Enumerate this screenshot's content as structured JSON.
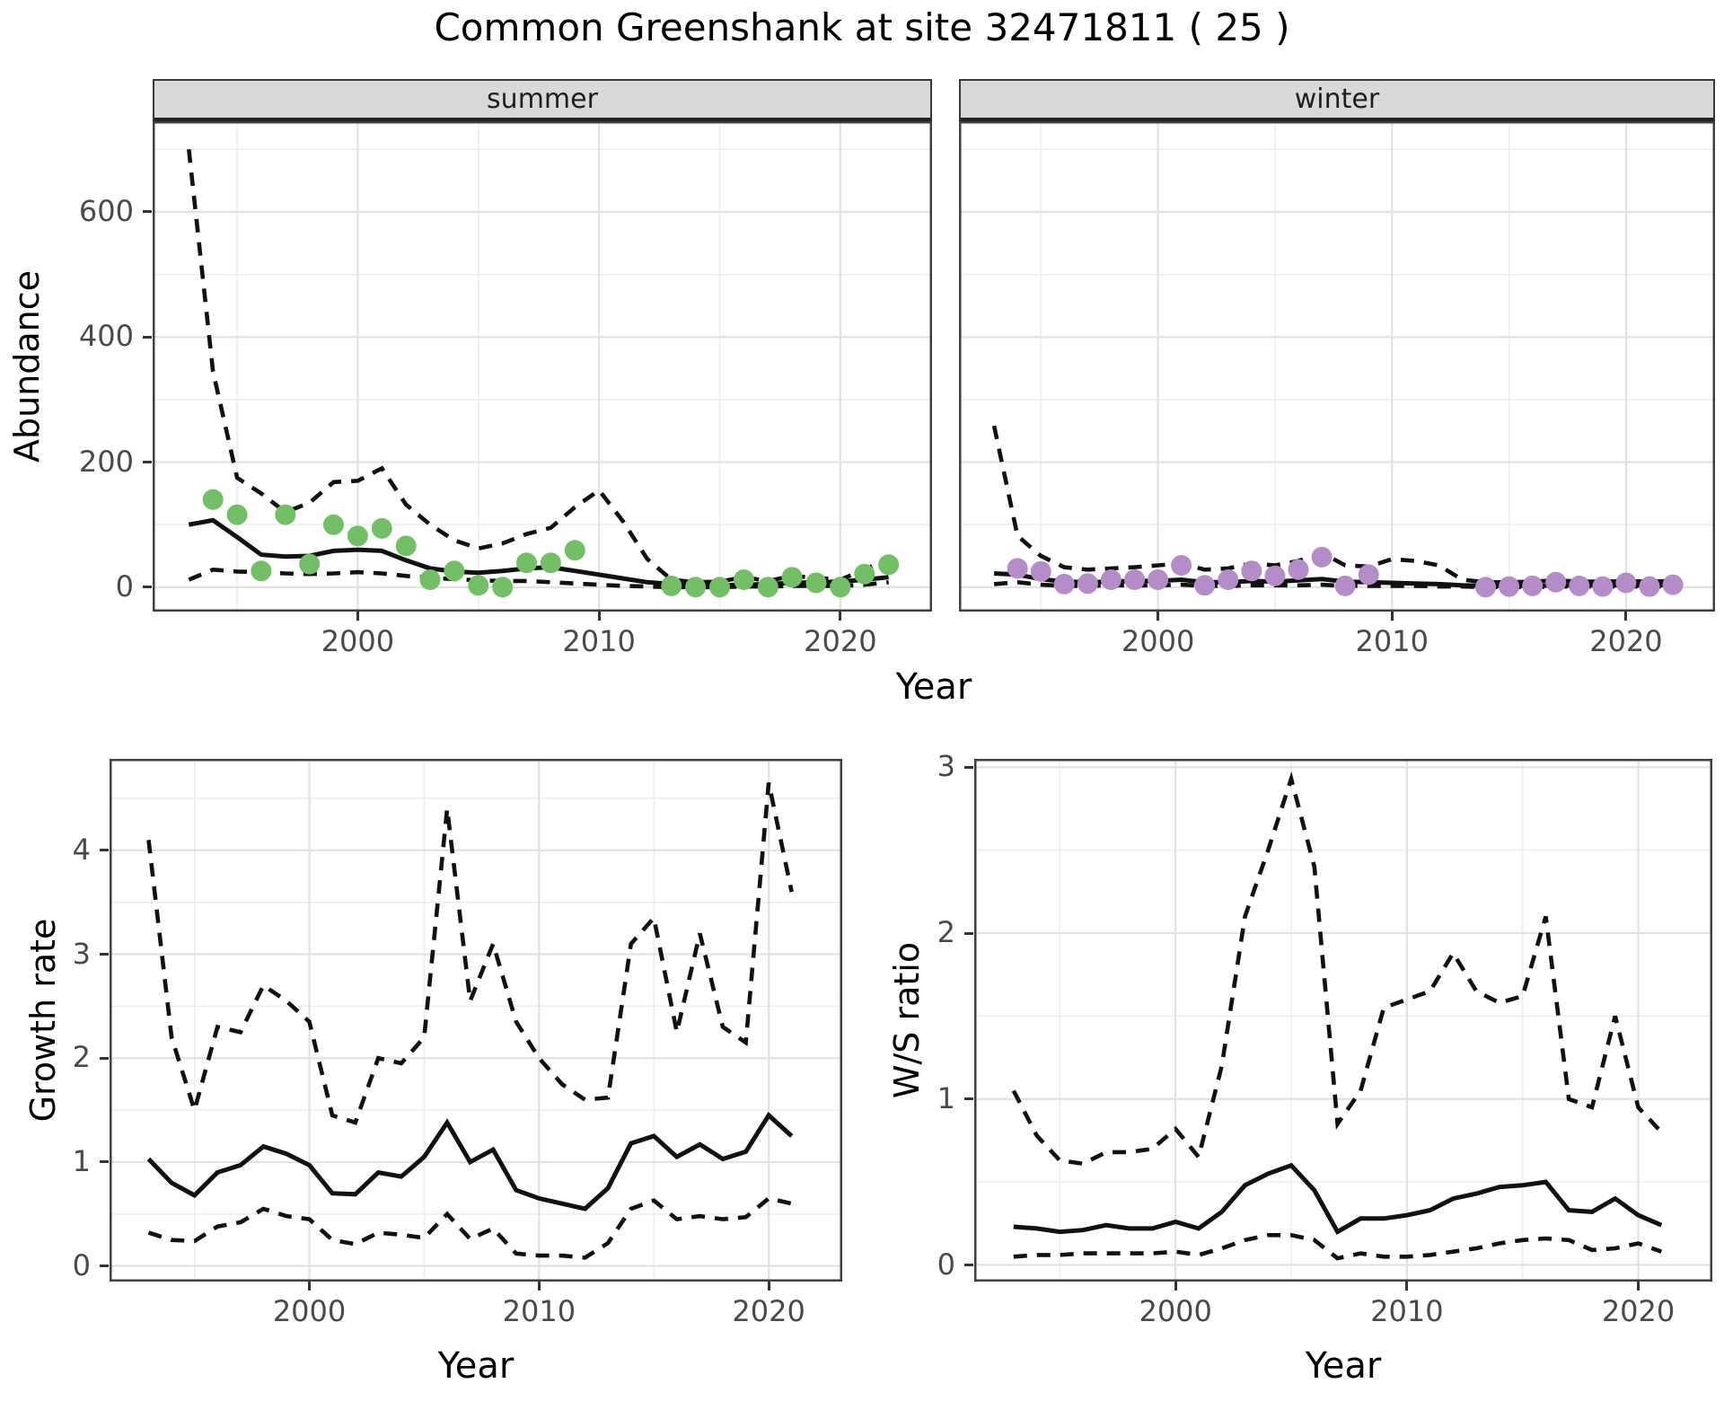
{
  "title": "Common Greenshank at site 32471811 ( 25 )",
  "labels": {
    "year": "Year",
    "abundance": "Abundance",
    "growth_rate": "Growth rate",
    "ws_ratio": "W/S ratio"
  },
  "facet_strips": [
    "summer",
    "winter"
  ],
  "colors": {
    "summer_point": "#72bf66",
    "winter_point": "#b48cc8",
    "line": "#111111",
    "grid_major": "#e2e2e2",
    "grid_minor": "#eeeeee",
    "panel_border": "#404040",
    "strip_bg": "#d9d9d9",
    "tick_text": "#4a4a4a"
  },
  "chart_data": [
    {
      "type": "line",
      "name": "abundance-summer",
      "facet": "summer",
      "title": "summer",
      "xlabel": "Year",
      "ylabel": "Abundance",
      "xlim": [
        1991.5,
        2023.8
      ],
      "ylim": [
        -39,
        745
      ],
      "grid": true,
      "legend": "none",
      "xticks": {
        "major": [
          2000,
          2010,
          2020
        ],
        "minor": [
          1995,
          2005,
          2015
        ],
        "labels": [
          "2000",
          "2010",
          "2020"
        ]
      },
      "yticks": {
        "major": [
          0,
          200,
          400,
          600
        ],
        "minor": [
          100,
          300,
          500,
          700
        ],
        "labels": [
          "0",
          "200",
          "400",
          "600"
        ]
      },
      "show_ytick_labels": true,
      "x": [
        1993,
        1994,
        1995,
        1996,
        1997,
        1998,
        1999,
        2000,
        2001,
        2002,
        2003,
        2004,
        2005,
        2006,
        2007,
        2008,
        2009,
        2010,
        2011,
        2012,
        2013,
        2014,
        2015,
        2016,
        2017,
        2018,
        2019,
        2020,
        2021,
        2022
      ],
      "series": [
        {
          "name": "median",
          "dash": false,
          "values": [
            100,
            107,
            80,
            52,
            49,
            50,
            58,
            60,
            58,
            43,
            30,
            25,
            23,
            26,
            30,
            32,
            26,
            20,
            14,
            8,
            5,
            3,
            3,
            4,
            5,
            7,
            8,
            9,
            12,
            16
          ]
        },
        {
          "name": "upper_ci",
          "dash": true,
          "values": [
            700,
            345,
            175,
            150,
            120,
            135,
            168,
            170,
            190,
            132,
            100,
            75,
            62,
            70,
            85,
            95,
            128,
            155,
            105,
            45,
            12,
            8,
            9,
            16,
            10,
            18,
            15,
            12,
            28,
            45
          ]
        },
        {
          "name": "lower_ci",
          "dash": true,
          "values": [
            12,
            28,
            25,
            24,
            22,
            21,
            22,
            24,
            22,
            18,
            15,
            13,
            11,
            10,
            10,
            8,
            6,
            4,
            2,
            1,
            0,
            0,
            0,
            1,
            1,
            2,
            2,
            2,
            4,
            8
          ]
        }
      ],
      "points": {
        "color_key": "summer_point",
        "x": [
          1994,
          1995,
          1996,
          1997,
          1998,
          1999,
          2000,
          2001,
          2002,
          2003,
          2004,
          2005,
          2006,
          2007,
          2008,
          2009,
          2013,
          2014,
          2015,
          2016,
          2017,
          2018,
          2019,
          2020,
          2021,
          2022
        ],
        "y": [
          140,
          116,
          26,
          116,
          37,
          100,
          82,
          94,
          66,
          12,
          26,
          3,
          0,
          39,
          39,
          59,
          2,
          0,
          0,
          12,
          0,
          16,
          7,
          0,
          21,
          36
        ]
      }
    },
    {
      "type": "line",
      "name": "abundance-winter",
      "facet": "winter",
      "title": "winter",
      "xlabel": "Year",
      "ylabel": "Abundance",
      "xlim": [
        1991.5,
        2023.8
      ],
      "ylim": [
        -39,
        745
      ],
      "grid": true,
      "legend": "none",
      "xticks": {
        "major": [
          2000,
          2010,
          2020
        ],
        "minor": [
          1995,
          2005,
          2015
        ],
        "labels": [
          "2000",
          "2010",
          "2020"
        ]
      },
      "yticks": {
        "major": [
          0,
          200,
          400,
          600
        ],
        "minor": [
          100,
          300,
          500,
          700
        ],
        "labels": [
          "0",
          "200",
          "400",
          "600"
        ]
      },
      "show_ytick_labels": false,
      "x": [
        1993,
        1994,
        1995,
        1996,
        1997,
        1998,
        1999,
        2000,
        2001,
        2002,
        2003,
        2004,
        2005,
        2006,
        2007,
        2008,
        2009,
        2010,
        2011,
        2012,
        2013,
        2014,
        2015,
        2016,
        2017,
        2018,
        2019,
        2020,
        2021,
        2022
      ],
      "series": [
        {
          "name": "median",
          "dash": false,
          "values": [
            22,
            20,
            13,
            9,
            8,
            9,
            10,
            10,
            12,
            8,
            8,
            10,
            9,
            11,
            13,
            9,
            8,
            7,
            6,
            5,
            3,
            2,
            2,
            2,
            3,
            3,
            3,
            3,
            3,
            4
          ]
        },
        {
          "name": "upper_ci",
          "dash": true,
          "values": [
            258,
            82,
            50,
            32,
            28,
            30,
            32,
            35,
            38,
            28,
            30,
            38,
            35,
            42,
            55,
            35,
            33,
            45,
            42,
            35,
            12,
            8,
            8,
            9,
            11,
            9,
            9,
            10,
            9,
            10
          ]
        },
        {
          "name": "lower_ci",
          "dash": true,
          "values": [
            5,
            8,
            4,
            2,
            2,
            3,
            3,
            3,
            4,
            2,
            2,
            3,
            3,
            3,
            4,
            2,
            2,
            2,
            2,
            1,
            1,
            0,
            0,
            0,
            1,
            1,
            1,
            1,
            1,
            1
          ]
        }
      ],
      "points": {
        "color_key": "winter_point",
        "x": [
          1994,
          1995,
          1996,
          1997,
          1998,
          1999,
          2000,
          2001,
          2002,
          2003,
          2004,
          2005,
          2006,
          2007,
          2008,
          2009,
          2014,
          2015,
          2016,
          2017,
          2018,
          2019,
          2020,
          2021,
          2022
        ],
        "y": [
          30,
          25,
          5,
          6,
          12,
          12,
          12,
          35,
          3,
          12,
          26,
          18,
          28,
          48,
          2,
          20,
          0,
          1,
          2,
          8,
          2,
          1,
          7,
          1,
          4
        ]
      }
    },
    {
      "type": "line",
      "name": "growth-rate",
      "facet": null,
      "title": "",
      "xlabel": "Year",
      "ylabel": "Growth rate",
      "xlim": [
        1991.3,
        2023.2
      ],
      "ylim": [
        -0.15,
        4.88
      ],
      "grid": true,
      "legend": "none",
      "xticks": {
        "major": [
          2000,
          2010,
          2020
        ],
        "minor": [
          1995,
          2005,
          2015
        ],
        "labels": [
          "2000",
          "2010",
          "2020"
        ]
      },
      "yticks": {
        "major": [
          0,
          1,
          2,
          3,
          4
        ],
        "minor": [
          0.5,
          1.5,
          2.5,
          3.5,
          4.5
        ],
        "labels": [
          "0",
          "1",
          "2",
          "3",
          "4"
        ]
      },
      "show_ytick_labels": true,
      "x": [
        1993,
        1994,
        1995,
        1996,
        1997,
        1998,
        1999,
        2000,
        2001,
        2002,
        2003,
        2004,
        2005,
        2006,
        2007,
        2008,
        2009,
        2010,
        2011,
        2012,
        2013,
        2014,
        2015,
        2016,
        2017,
        2018,
        2019,
        2020,
        2021
      ],
      "series": [
        {
          "name": "median",
          "dash": false,
          "values": [
            1.03,
            0.8,
            0.68,
            0.9,
            0.97,
            1.15,
            1.08,
            0.97,
            0.7,
            0.69,
            0.9,
            0.86,
            1.05,
            1.38,
            1.0,
            1.12,
            0.73,
            0.65,
            0.6,
            0.55,
            0.75,
            1.18,
            1.25,
            1.05,
            1.17,
            1.03,
            1.1,
            1.45,
            1.25
          ]
        },
        {
          "name": "upper_ci",
          "dash": true,
          "values": [
            4.1,
            2.2,
            1.5,
            2.3,
            2.25,
            2.7,
            2.55,
            2.35,
            1.45,
            1.38,
            2.0,
            1.95,
            2.2,
            4.4,
            2.55,
            3.1,
            2.35,
            2.0,
            1.75,
            1.6,
            1.62,
            3.1,
            3.35,
            2.25,
            3.2,
            2.3,
            2.15,
            4.65,
            3.6
          ]
        },
        {
          "name": "lower_ci",
          "dash": true,
          "values": [
            0.32,
            0.25,
            0.24,
            0.38,
            0.42,
            0.55,
            0.48,
            0.45,
            0.25,
            0.21,
            0.32,
            0.3,
            0.27,
            0.5,
            0.26,
            0.36,
            0.12,
            0.1,
            0.1,
            0.08,
            0.22,
            0.55,
            0.63,
            0.45,
            0.48,
            0.45,
            0.47,
            0.65,
            0.6
          ]
        }
      ],
      "points": null
    },
    {
      "type": "line",
      "name": "ws-ratio",
      "facet": null,
      "title": "",
      "xlabel": "Year",
      "ylabel": "W/S ratio",
      "xlim": [
        1991.3,
        2023.2
      ],
      "ylim": [
        -0.1,
        3.05
      ],
      "grid": true,
      "legend": "none",
      "xticks": {
        "major": [
          2000,
          2010,
          2020
        ],
        "minor": [
          1995,
          2005,
          2015
        ],
        "labels": [
          "2000",
          "2010",
          "2020"
        ]
      },
      "yticks": {
        "major": [
          0,
          1,
          2,
          3
        ],
        "minor": [
          0.5,
          1.5,
          2.5
        ],
        "labels": [
          "0",
          "1",
          "2",
          "3"
        ]
      },
      "show_ytick_labels": true,
      "x": [
        1993,
        1994,
        1995,
        1996,
        1997,
        1998,
        1999,
        2000,
        2001,
        2002,
        2003,
        2004,
        2005,
        2006,
        2007,
        2008,
        2009,
        2010,
        2011,
        2012,
        2013,
        2014,
        2015,
        2016,
        2017,
        2018,
        2019,
        2020,
        2021
      ],
      "series": [
        {
          "name": "median",
          "dash": false,
          "values": [
            0.23,
            0.22,
            0.2,
            0.21,
            0.24,
            0.22,
            0.22,
            0.26,
            0.22,
            0.32,
            0.48,
            0.55,
            0.6,
            0.45,
            0.2,
            0.28,
            0.28,
            0.3,
            0.33,
            0.4,
            0.43,
            0.47,
            0.48,
            0.5,
            0.33,
            0.32,
            0.4,
            0.3,
            0.24
          ]
        },
        {
          "name": "upper_ci",
          "dash": true,
          "values": [
            1.05,
            0.78,
            0.63,
            0.61,
            0.68,
            0.68,
            0.7,
            0.82,
            0.65,
            1.2,
            2.1,
            2.5,
            2.93,
            2.4,
            0.85,
            1.05,
            1.55,
            1.6,
            1.65,
            1.88,
            1.65,
            1.58,
            1.62,
            2.1,
            1.0,
            0.95,
            1.5,
            0.95,
            0.8
          ]
        },
        {
          "name": "lower_ci",
          "dash": true,
          "values": [
            0.05,
            0.06,
            0.06,
            0.07,
            0.07,
            0.07,
            0.07,
            0.08,
            0.06,
            0.1,
            0.15,
            0.18,
            0.18,
            0.15,
            0.04,
            0.07,
            0.05,
            0.05,
            0.06,
            0.08,
            0.1,
            0.13,
            0.15,
            0.16,
            0.15,
            0.09,
            0.1,
            0.13,
            0.08
          ]
        }
      ],
      "points": null
    }
  ]
}
